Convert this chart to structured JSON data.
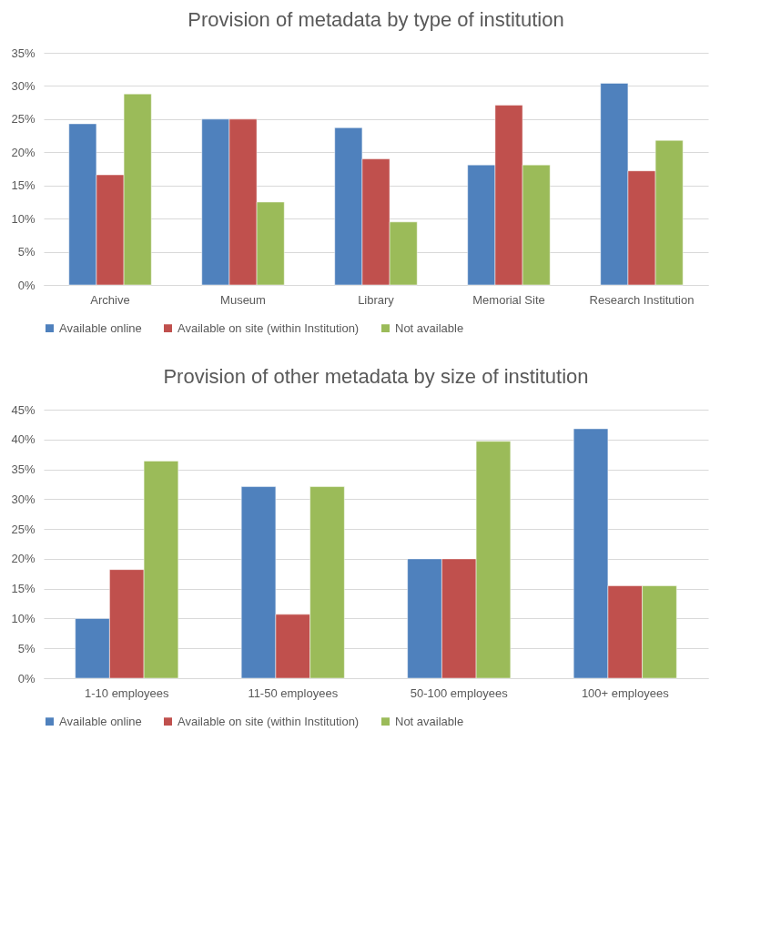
{
  "chart_data": [
    {
      "type": "bar",
      "title": "Provision of metadata by type of institution",
      "categories": [
        "Archive",
        "Museum",
        "Library",
        "Memorial Site",
        "Research Institution"
      ],
      "series": [
        {
          "name": "Available online",
          "color": "#4f81bd",
          "values": [
            24.3,
            25,
            23.7,
            18.1,
            30.4
          ]
        },
        {
          "name": "Available on site (within Institution)",
          "color": "#c0504d",
          "values": [
            16.6,
            25,
            19.0,
            27.1,
            17.2
          ]
        },
        {
          "name": "Not available",
          "color": "#9bbb59",
          "values": [
            28.8,
            12.5,
            9.5,
            18.1,
            21.8
          ]
        }
      ],
      "ylim": [
        0,
        35
      ],
      "yticks": [
        {
          "value": 0,
          "label": "0%"
        },
        {
          "value": 5,
          "label": "5%"
        },
        {
          "value": 10,
          "label": "10%"
        },
        {
          "value": 15,
          "label": "15%"
        },
        {
          "value": 20,
          "label": "20%"
        },
        {
          "value": 25,
          "label": "25%"
        },
        {
          "value": 30,
          "label": "30%"
        },
        {
          "value": 35,
          "label": "35%"
        }
      ],
      "grid": "y",
      "legend": "bottom"
    },
    {
      "type": "bar",
      "title": "Provision of other metadata by size of institution",
      "categories": [
        "1-10 employees",
        "11-50 employees",
        "50-100 employees",
        "100+ employees"
      ],
      "series": [
        {
          "name": "Available online",
          "color": "#4f81bd",
          "values": [
            10,
            32.1,
            20,
            41.8
          ]
        },
        {
          "name": "Available on site (within Institution)",
          "color": "#c0504d",
          "values": [
            18.2,
            10.7,
            20,
            15.5
          ]
        },
        {
          "name": "Not available",
          "color": "#9bbb59",
          "values": [
            36.4,
            32.1,
            39.7,
            15.5
          ]
        }
      ],
      "ylim": [
        0,
        45
      ],
      "yticks": [
        {
          "value": 0,
          "label": "0%"
        },
        {
          "value": 5,
          "label": "5%"
        },
        {
          "value": 10,
          "label": "10%"
        },
        {
          "value": 15,
          "label": "15%"
        },
        {
          "value": 20,
          "label": "20%"
        },
        {
          "value": 25,
          "label": "25%"
        },
        {
          "value": 30,
          "label": "30%"
        },
        {
          "value": 35,
          "label": "35%"
        },
        {
          "value": 40,
          "label": "40%"
        },
        {
          "value": 45,
          "label": "45%"
        }
      ],
      "grid": "y",
      "legend": "bottom"
    }
  ]
}
